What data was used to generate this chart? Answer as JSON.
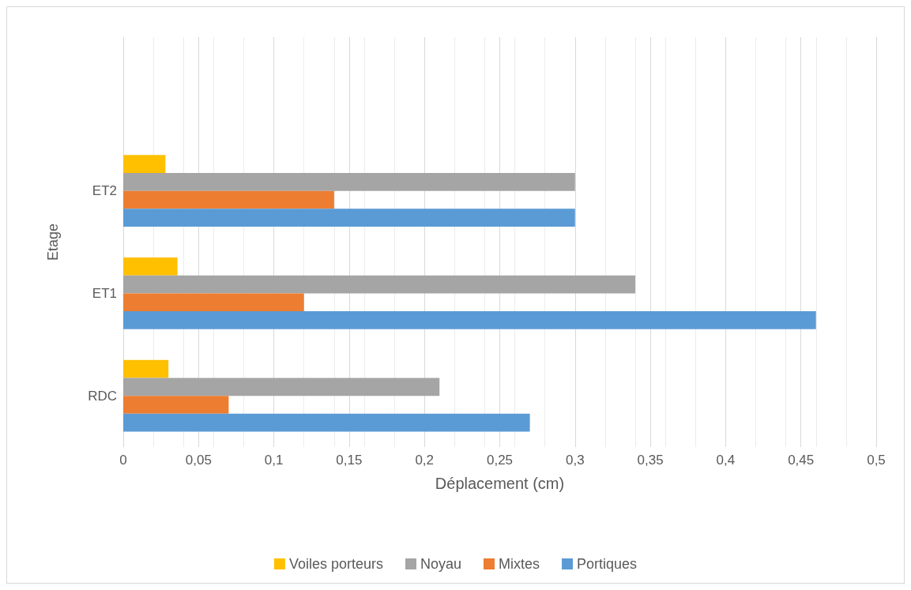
{
  "chart_data": {
    "type": "bar",
    "orientation": "horizontal",
    "xlabel": "Déplacement (cm)",
    "ylabel": "Etage",
    "categories": [
      null,
      "ET2",
      "ET1",
      "RDC"
    ],
    "series": [
      {
        "name": "Voiles porteurs",
        "color": "#ffc000",
        "values": [
          null,
          0.028,
          0.036,
          0.03
        ]
      },
      {
        "name": "Noyau",
        "color": "#a5a5a5",
        "values": [
          null,
          0.3,
          0.34,
          0.21
        ]
      },
      {
        "name": "Mixtes",
        "color": "#ed7d31",
        "values": [
          null,
          0.14,
          0.12,
          0.07
        ]
      },
      {
        "name": "Portiques",
        "color": "#5b9bd5",
        "values": [
          null,
          0.3,
          0.46,
          0.27
        ]
      }
    ],
    "xlim": [
      0,
      0.5
    ],
    "xticks": [
      0,
      {
        "value": 0.05,
        "label": "0,05"
      },
      {
        "value": 0.1,
        "label": "0,1"
      },
      {
        "value": 0.15,
        "label": "0,15"
      },
      {
        "value": 0.2,
        "label": "0,2"
      },
      {
        "value": 0.25,
        "label": "0,25"
      },
      {
        "value": 0.3,
        "label": "0,3"
      },
      {
        "value": 0.35,
        "label": "0,35"
      },
      {
        "value": 0.4,
        "label": "0,4"
      },
      {
        "value": 0.45,
        "label": "0,45"
      },
      {
        "value": 0.5,
        "label": "0,5"
      }
    ],
    "grid": "x",
    "legend": "bottom"
  }
}
